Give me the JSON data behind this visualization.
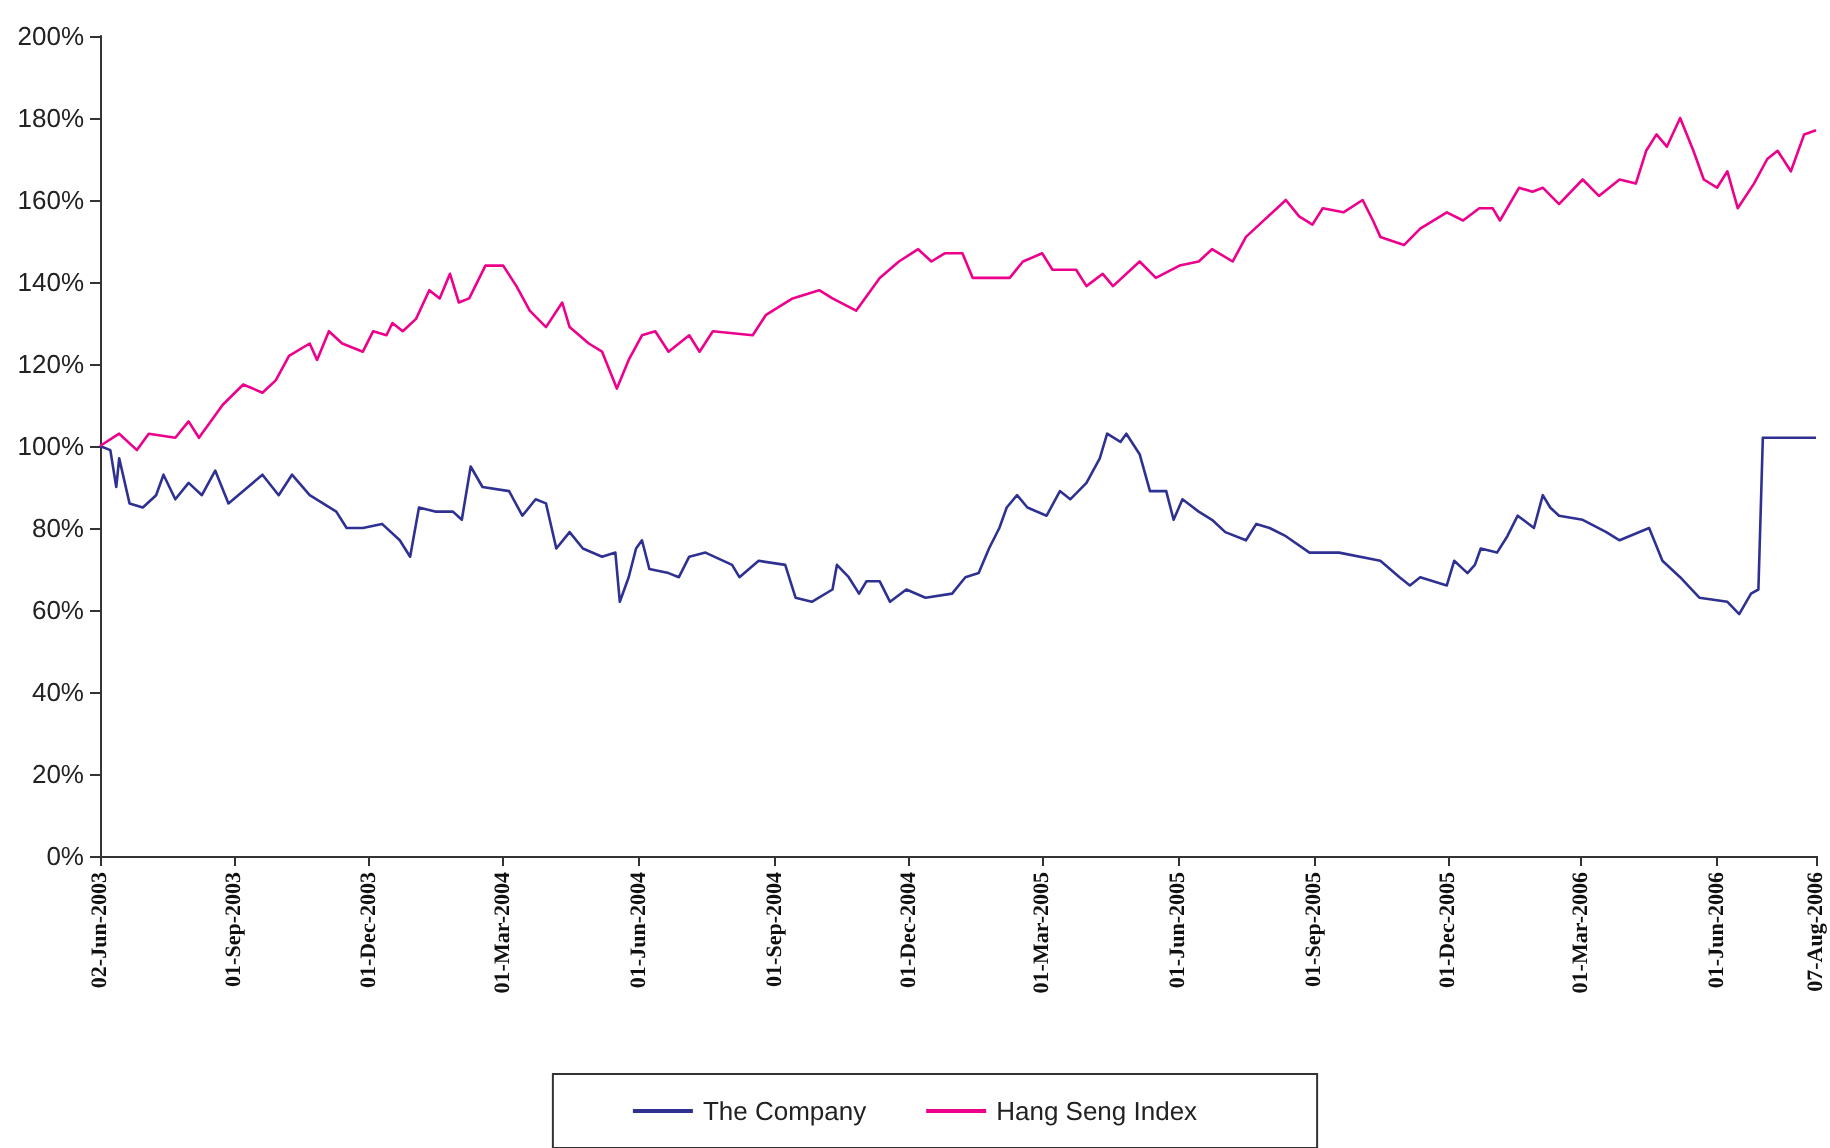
{
  "chart_data": {
    "type": "line",
    "xlim": [
      "2003-06-02",
      "2006-08-07"
    ],
    "xticks": [
      {
        "value": "2003-06-02",
        "label": "02-Jun-2003"
      },
      {
        "value": "2003-09-01",
        "label": "01-Sep-2003"
      },
      {
        "value": "2003-12-01",
        "label": "01-Dec-2003"
      },
      {
        "value": "2004-03-01",
        "label": "01-Mar-2004"
      },
      {
        "value": "2004-06-01",
        "label": "01-Jun-2004"
      },
      {
        "value": "2004-09-01",
        "label": "01-Sep-2004"
      },
      {
        "value": "2004-12-01",
        "label": "01-Dec-2004"
      },
      {
        "value": "2005-03-01",
        "label": "01-Mar-2005"
      },
      {
        "value": "2005-06-01",
        "label": "01-Jun-2005"
      },
      {
        "value": "2005-09-01",
        "label": "01-Sep-2005"
      },
      {
        "value": "2005-12-01",
        "label": "01-Dec-2005"
      },
      {
        "value": "2006-03-01",
        "label": "01-Mar-2006"
      },
      {
        "value": "2006-06-01",
        "label": "01-Jun-2006"
      },
      {
        "value": "2006-08-07",
        "label": "07-Aug-2006"
      }
    ],
    "ylim": [
      0,
      200
    ],
    "yticks": [
      {
        "value": 0,
        "label": "0%"
      },
      {
        "value": 20,
        "label": "20%"
      },
      {
        "value": 40,
        "label": "40%"
      },
      {
        "value": 60,
        "label": "60%"
      },
      {
        "value": 80,
        "label": "80%"
      },
      {
        "value": 100,
        "label": "100%"
      },
      {
        "value": 120,
        "label": "120%"
      },
      {
        "value": 140,
        "label": "140%"
      },
      {
        "value": 160,
        "label": "160%"
      },
      {
        "value": 180,
        "label": "180%"
      },
      {
        "value": 200,
        "label": "200%"
      }
    ],
    "grid": false,
    "legend": "bottom",
    "series": [
      {
        "name": "The Company",
        "color": "#2e3192",
        "x": [
          "2003-06-02",
          "2003-06-09",
          "2003-06-13",
          "2003-06-15",
          "2003-06-22",
          "2003-07-01",
          "2003-07-10",
          "2003-07-15",
          "2003-07-23",
          "2003-08-01",
          "2003-08-10",
          "2003-08-19",
          "2003-08-28",
          "2003-09-07",
          "2003-09-20",
          "2003-10-01",
          "2003-10-10",
          "2003-10-22",
          "2003-11-09",
          "2003-11-16",
          "2003-11-27",
          "2003-12-10",
          "2003-12-22",
          "2003-12-29",
          "2004-01-04",
          "2004-01-15",
          "2004-01-27",
          "2004-02-02",
          "2004-02-08",
          "2004-02-16",
          "2004-03-05",
          "2004-03-14",
          "2004-03-23",
          "2004-03-30",
          "2004-04-06",
          "2004-04-15",
          "2004-04-24",
          "2004-05-07",
          "2004-05-16",
          "2004-05-19",
          "2004-05-25",
          "2004-05-30",
          "2004-06-03",
          "2004-06-08",
          "2004-06-21",
          "2004-06-28",
          "2004-07-05",
          "2004-07-16",
          "2004-08-03",
          "2004-08-08",
          "2004-08-21",
          "2004-09-08",
          "2004-09-15",
          "2004-09-26",
          "2004-10-10",
          "2004-10-13",
          "2004-10-21",
          "2004-10-28",
          "2004-11-02",
          "2004-11-11",
          "2004-11-18",
          "2004-11-29",
          "2004-12-12",
          "2004-12-30",
          "2005-01-08",
          "2005-01-17",
          "2005-01-24",
          "2005-01-31",
          "2005-02-05",
          "2005-02-12",
          "2005-02-19",
          "2005-03-04",
          "2005-03-13",
          "2005-03-20",
          "2005-03-31",
          "2005-04-09",
          "2005-04-14",
          "2005-04-23",
          "2005-04-27",
          "2005-05-06",
          "2005-05-13",
          "2005-05-24",
          "2005-05-29",
          "2005-06-04",
          "2005-06-15",
          "2005-06-24",
          "2005-07-03",
          "2005-07-17",
          "2005-07-24",
          "2005-08-02",
          "2005-08-13",
          "2005-08-29",
          "2005-09-18",
          "2005-10-16",
          "2005-10-29",
          "2005-11-05",
          "2005-11-12",
          "2005-11-30",
          "2005-12-05",
          "2005-12-14",
          "2005-12-19",
          "2005-12-23",
          "2006-01-03",
          "2006-01-10",
          "2006-01-17",
          "2006-01-28",
          "2006-02-03",
          "2006-02-08",
          "2006-02-14",
          "2006-03-02",
          "2006-03-18",
          "2006-03-27",
          "2006-04-16",
          "2006-04-25",
          "2006-05-07",
          "2006-05-20",
          "2006-06-08",
          "2006-06-16",
          "2006-06-24",
          "2006-06-29",
          "2006-07-02",
          "2006-08-07"
        ],
        "values": [
          100,
          99,
          90,
          97,
          86,
          85,
          88,
          93,
          87,
          91,
          88,
          94,
          86,
          89,
          93,
          88,
          93,
          88,
          84,
          80,
          80,
          81,
          77,
          73,
          85,
          84,
          84,
          82,
          95,
          90,
          89,
          83,
          87,
          86,
          75,
          79,
          75,
          73,
          74,
          62,
          68,
          75,
          77,
          70,
          69,
          68,
          73,
          74,
          71,
          68,
          72,
          71,
          63,
          62,
          65,
          71,
          68,
          64,
          67,
          67,
          62,
          65,
          63,
          64,
          68,
          69,
          75,
          80,
          85,
          88,
          85,
          83,
          89,
          87,
          91,
          97,
          103,
          101,
          103,
          98,
          89,
          89,
          82,
          87,
          84,
          82,
          79,
          77,
          81,
          80,
          78,
          74,
          74,
          72,
          68,
          66,
          68,
          66,
          72,
          69,
          71,
          75,
          74,
          78,
          83,
          80,
          88,
          85,
          83,
          82,
          79,
          77,
          80,
          72,
          68,
          63,
          62,
          59,
          64,
          65,
          102,
          102
        ]
      },
      {
        "name": "Hang Seng Index",
        "color": "#ec008c",
        "x": [
          "2003-06-02",
          "2003-06-15",
          "2003-06-27",
          "2003-07-05",
          "2003-07-23",
          "2003-08-01",
          "2003-08-08",
          "2003-08-24",
          "2003-09-07",
          "2003-09-20",
          "2003-09-29",
          "2003-10-08",
          "2003-10-22",
          "2003-10-27",
          "2003-11-04",
          "2003-11-13",
          "2003-11-27",
          "2003-12-04",
          "2003-12-13",
          "2003-12-17",
          "2003-12-24",
          "2004-01-02",
          "2004-01-11",
          "2004-01-18",
          "2004-01-25",
          "2004-01-31",
          "2004-02-07",
          "2004-02-18",
          "2004-03-01",
          "2004-03-10",
          "2004-03-19",
          "2004-03-30",
          "2004-04-10",
          "2004-04-15",
          "2004-04-28",
          "2004-05-07",
          "2004-05-17",
          "2004-05-25",
          "2004-06-03",
          "2004-06-12",
          "2004-06-21",
          "2004-07-05",
          "2004-07-12",
          "2004-07-21",
          "2004-08-17",
          "2004-08-26",
          "2004-09-13",
          "2004-10-01",
          "2004-10-10",
          "2004-10-26",
          "2004-11-11",
          "2004-11-24",
          "2004-12-07",
          "2004-12-16",
          "2004-12-25",
          "2005-01-06",
          "2005-01-13",
          "2005-01-26",
          "2005-02-07",
          "2005-02-16",
          "2005-03-01",
          "2005-03-08",
          "2005-03-24",
          "2005-03-31",
          "2005-04-11",
          "2005-04-18",
          "2005-05-06",
          "2005-05-17",
          "2005-06-02",
          "2005-06-15",
          "2005-06-24",
          "2005-07-08",
          "2005-07-17",
          "2005-07-26",
          "2005-08-13",
          "2005-08-22",
          "2005-08-31",
          "2005-09-07",
          "2005-09-21",
          "2005-10-04",
          "2005-10-11",
          "2005-10-16",
          "2005-11-01",
          "2005-11-12",
          "2005-11-30",
          "2005-12-11",
          "2005-12-22",
          "2005-12-31",
          "2006-01-05",
          "2006-01-18",
          "2006-01-27",
          "2006-02-03",
          "2006-02-14",
          "2006-03-02",
          "2006-03-13",
          "2006-03-27",
          "2006-04-07",
          "2006-04-14",
          "2006-04-21",
          "2006-04-28",
          "2006-05-07",
          "2006-05-16",
          "2006-05-23",
          "2006-06-01",
          "2006-06-08",
          "2006-06-15",
          "2006-06-26",
          "2006-07-05",
          "2006-07-12",
          "2006-07-21",
          "2006-07-30",
          "2006-08-07"
        ],
        "values": [
          100,
          103,
          99,
          103,
          102,
          106,
          102,
          110,
          115,
          113,
          116,
          122,
          125,
          121,
          128,
          125,
          123,
          128,
          127,
          130,
          128,
          131,
          138,
          136,
          142,
          135,
          136,
          144,
          144,
          139,
          133,
          129,
          135,
          129,
          125,
          123,
          114,
          121,
          127,
          128,
          123,
          127,
          123,
          128,
          127,
          132,
          136,
          138,
          136,
          133,
          141,
          145,
          148,
          145,
          147,
          147,
          141,
          141,
          141,
          145,
          147,
          143,
          143,
          139,
          142,
          139,
          145,
          141,
          144,
          145,
          148,
          145,
          151,
          154,
          160,
          156,
          154,
          158,
          157,
          160,
          155,
          151,
          149,
          153,
          157,
          155,
          158,
          158,
          155,
          163,
          162,
          163,
          159,
          165,
          161,
          165,
          164,
          172,
          176,
          173,
          180,
          172,
          165,
          163,
          167,
          158,
          164,
          170,
          172,
          167,
          176,
          177
        ]
      }
    ]
  }
}
